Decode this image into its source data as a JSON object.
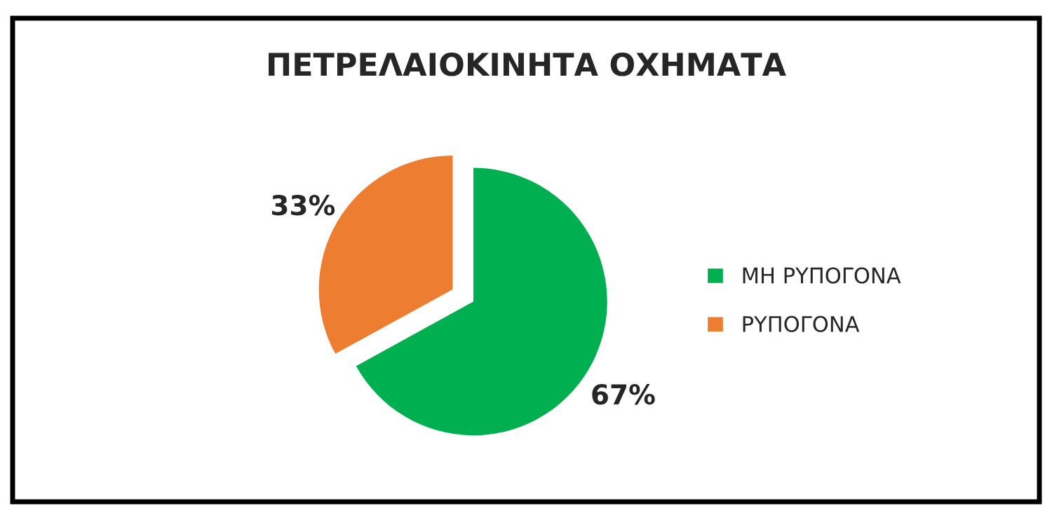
{
  "chart_data": {
    "type": "pie",
    "title": "ΠΕΤΡΕΛΑΙΟΚΙΝΗΤΑ ΟΧΗΜΑΤΑ",
    "categories": [
      "ΜΗ ΡΥΠΟΓΟΝΑ",
      "ΡΥΠΟΓΟΝΑ"
    ],
    "values": [
      67,
      33
    ],
    "colors": [
      "#00b050",
      "#ed7d31"
    ],
    "value_labels": [
      "67%",
      "33%"
    ],
    "legend": "right"
  }
}
